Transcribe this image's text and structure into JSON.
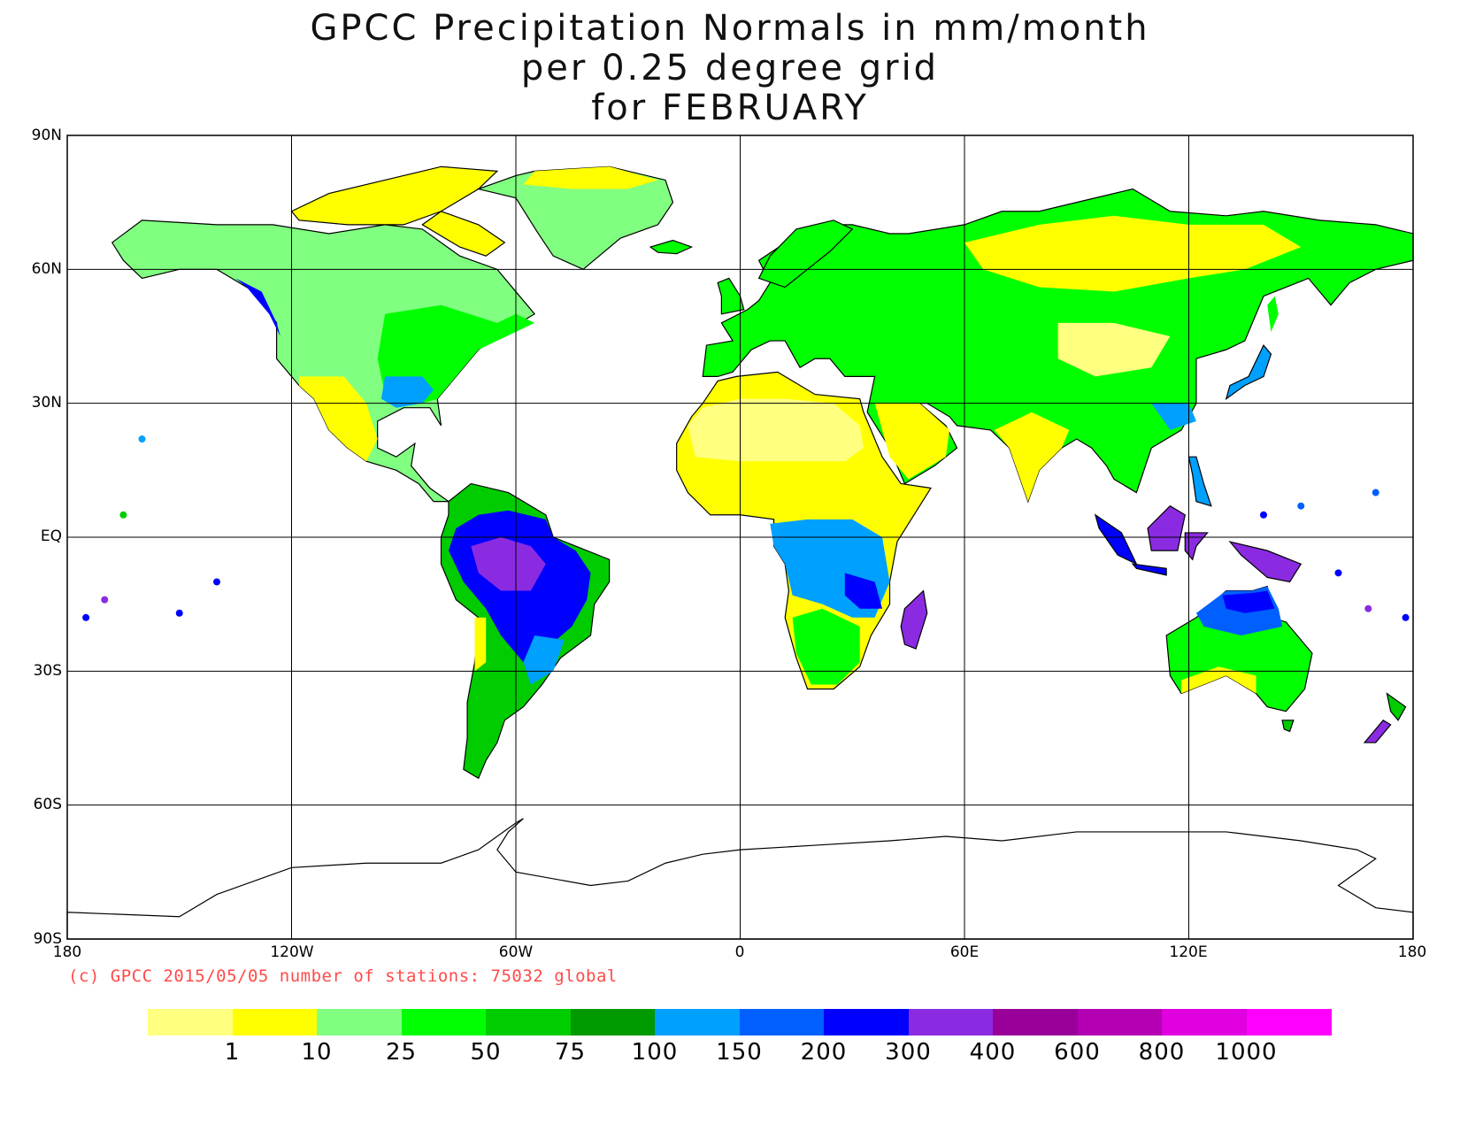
{
  "title": {
    "line1": "GPCC Precipitation Normals in mm/month",
    "line2": "per 0.25 degree grid",
    "line3": "for FEBRUARY"
  },
  "axes": {
    "lat_labels": [
      "90N",
      "60N",
      "30N",
      "EQ",
      "30S",
      "60S",
      "90S"
    ],
    "lon_labels": [
      "180",
      "120W",
      "60W",
      "0",
      "60E",
      "120E",
      "180"
    ]
  },
  "credit": "(c) GPCC 2015/05/05 number of stations: 75032 global",
  "legend": {
    "colors": [
      "#ffff80",
      "#ffff00",
      "#80ff80",
      "#00ff00",
      "#00cc00",
      "#009900",
      "#00a0ff",
      "#0060ff",
      "#0000ff",
      "#8a2be2",
      "#990099",
      "#b300b3",
      "#e000e0",
      "#ff00ff"
    ],
    "labels": [
      "1",
      "10",
      "25",
      "50",
      "75",
      "100",
      "150",
      "200",
      "300",
      "400",
      "600",
      "800",
      "1000"
    ]
  },
  "map_data": {
    "projection": "equirectangular",
    "lon_range": [
      -180,
      180
    ],
    "lat_range": [
      -90,
      90
    ],
    "regions": [
      {
        "name": "Arctic islands",
        "color": "#ffff00"
      },
      {
        "name": "Greenland east",
        "color": "#80ff80"
      },
      {
        "name": "North America interior",
        "color": "#80ff80"
      },
      {
        "name": "Eastern North America",
        "color": "#00ff00"
      },
      {
        "name": "Southeast US",
        "color": "#00a0ff"
      },
      {
        "name": "Mexico / US Southwest",
        "color": "#ffff00"
      },
      {
        "name": "Amazon basin",
        "color": "#0000ff"
      },
      {
        "name": "Central Amazon core",
        "color": "#8a2be2"
      },
      {
        "name": "Southern South America",
        "color": "#00cc00"
      },
      {
        "name": "Sahara",
        "color": "#ffff80"
      },
      {
        "name": "Sahel",
        "color": "#ffff00"
      },
      {
        "name": "Central / Southern Africa",
        "color": "#00a0ff"
      },
      {
        "name": "Europe",
        "color": "#00ff00"
      },
      {
        "name": "Siberia",
        "color": "#ffff00"
      },
      {
        "name": "Central Asia",
        "color": "#ffff80"
      },
      {
        "name": "India",
        "color": "#ffff00"
      },
      {
        "name": "Maritime Continent",
        "color": "#0000ff"
      },
      {
        "name": "Northern Australia",
        "color": "#0060ff"
      },
      {
        "name": "Australia interior",
        "color": "#00ff00"
      },
      {
        "name": "Antarctica",
        "color": "#ffffff"
      }
    ]
  }
}
